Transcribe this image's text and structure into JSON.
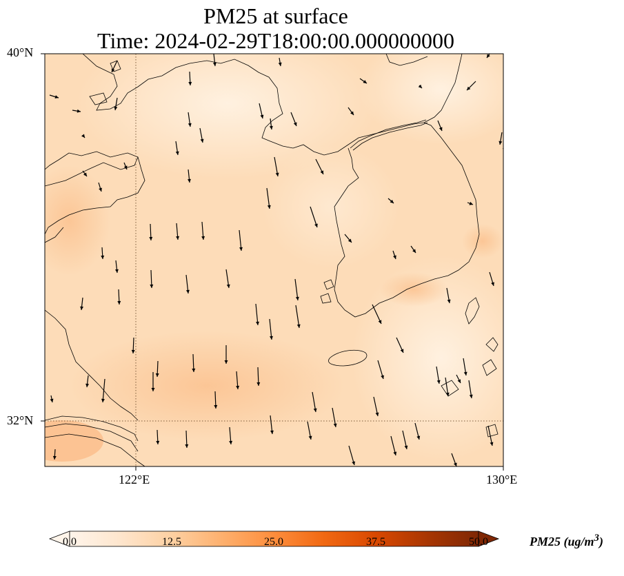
{
  "title": {
    "line1": "PM25 at surface",
    "line2": "Time: 2024-02-29T18:00:00.000000000"
  },
  "axes": {
    "lat_labels": [
      "40°N",
      "32°N"
    ],
    "lon_labels": [
      "122°E",
      "130°E"
    ],
    "lat_range": [
      31,
      40
    ],
    "lon_range": [
      120,
      130
    ]
  },
  "colorbar": {
    "label": "PM25 (ug/m",
    "label_exp": "3",
    "label_close": ")",
    "ticks": [
      "0.0",
      "12.5",
      "25.0",
      "37.5",
      "50.0"
    ],
    "range": [
      0,
      50
    ],
    "colormap": [
      "#fff5eb",
      "#fee6ce",
      "#fdd0a2",
      "#fdae6b",
      "#fd8d3c",
      "#f16913",
      "#d94801",
      "#a63603",
      "#7f2704"
    ]
  },
  "map_colors": {
    "base": "#fde0bf",
    "light": "#fff0de",
    "dark": "#fbc898",
    "coast": "#000000",
    "gridline": "#7a5a3a"
  }
}
